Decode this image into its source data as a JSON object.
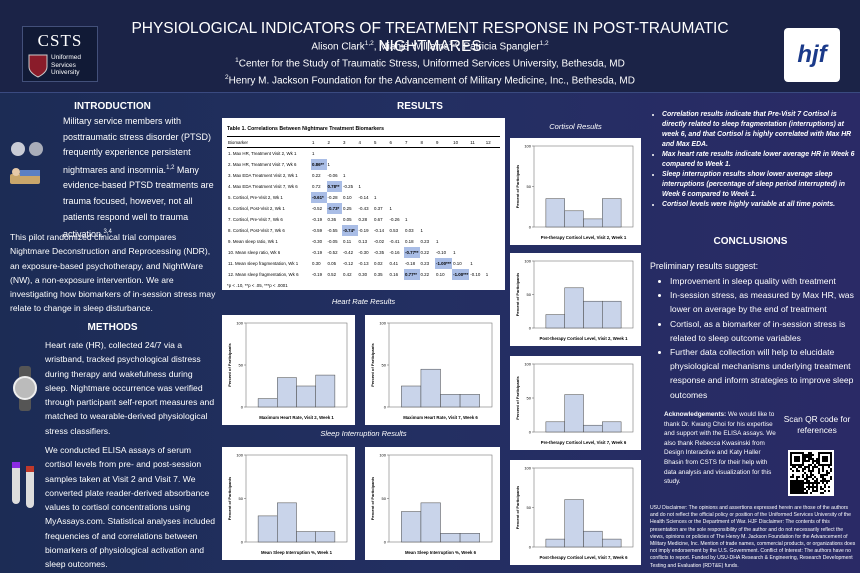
{
  "header": {
    "title": "PHYSIOLOGICAL INDICATORS OF TREATMENT RESPONSE IN POST-TRAUMATIC NIGHTMARES",
    "authors": [
      {
        "name": "Alison Clark",
        "affil": "1,2"
      },
      {
        "name": "Miahjé Williams",
        "affil": "1,2"
      },
      {
        "name": "Patricia Spangler",
        "affil": "1,2"
      }
    ],
    "affiliations": [
      {
        "mark": "1",
        "text": "Center for the Study of Traumatic Stress, Uniformed Services University, Bethesda, MD"
      },
      {
        "mark": "2",
        "text": "Henry M. Jackson Foundation for the Advancement of Military Medicine, Inc., Bethesda, MD"
      }
    ],
    "left_logo": {
      "name": "CSTS",
      "subtitle": "Uniformed Services University"
    },
    "right_logo": "hjf"
  },
  "introduction": {
    "heading": "INTRODUCTION",
    "text_1": "Military service members with posttraumatic stress disorder (PTSD) frequently experience persistent nightmares and insomnia.",
    "ref_1": "1,2",
    "text_2": " Many evidence-based PTSD treatments are trauma focused, however, not all patients respond well to trauma activation.",
    "ref_2": "3,4",
    "paragraph_2": "This pilot randomized clinical trial compares Nightmare Deconstruction and Reprocessing (NDR), an exposure-based psychotherapy, and NightWare (NW), a non-exposure intervention. We are investigating how biomarkers of in-session stress may relate to change in sleep disturbance."
  },
  "methods": {
    "heading": "METHODS",
    "paragraphs": [
      "Heart rate (HR), collected 24/7 via a wristband, tracked psychological distress during therapy and wakefulness during sleep. Nightmare occurrence was verified through participant self-report measures and matched to wearable-derived physiological stress classifiers.",
      "We conducted ELISA assays of serum cortisol levels from pre- and post-session samples taken at Visit 2 and Visit 7. We converted plate reader-derived absorbance values to cortisol concentrations using MyAssays.com. Statistical analyses included frequencies of and correlations between biomarkers of physiological activation and sleep outcomes."
    ]
  },
  "results": {
    "heading": "RESULTS",
    "table": {
      "title": "Table 1. Correlations Between Nightmare Treatment Biomarkers",
      "header": [
        "Biomarker",
        "1",
        "2",
        "3",
        "4",
        "5",
        "6",
        "7",
        "8",
        "9",
        "10",
        "11",
        "12"
      ],
      "rows": [
        {
          "label": "1. Max HR, Treatment Visit 2, Wk 1",
          "values": [
            "1"
          ]
        },
        {
          "label": "2. Max HR, Treatment Visit 7, Wk 6",
          "values": [
            "0.86**",
            "1"
          ]
        },
        {
          "label": "3. Max EDA Treatment Visit 2, Wk 1",
          "values": [
            "0.22",
            "-0.06",
            "1"
          ]
        },
        {
          "label": "4. Max EDA Treatment Visit 7, Wk 6",
          "values": [
            "0.72",
            "0.78**",
            "-0.25",
            "1"
          ]
        },
        {
          "label": "5. Cortisol, Pre-Visit 2, Wk 1",
          "values": [
            "-0.61*",
            "-0.28",
            "0.10",
            "-0.14",
            "1"
          ]
        },
        {
          "label": "6. Cortisol, Post-Visit 2, Wk 1",
          "values": [
            "-0.52",
            "-0.73*",
            "0.25",
            "-0.43",
            "0.37",
            "1"
          ]
        },
        {
          "label": "7. Cortisol, Pre-Visit 7, Wk 6",
          "values": [
            "-0.19",
            "0.36",
            "0.05",
            "0.28",
            "0.67",
            "-0.26",
            "1"
          ]
        },
        {
          "label": "8. Cortisol, Post-Visit 7, Wk 6",
          "values": [
            "-0.59",
            "-0.55",
            "-0.74*",
            "-0.19",
            "-0.14",
            "0.53",
            "0.03",
            "1"
          ]
        },
        {
          "label": "9. Mean sleep ratio, Wk 1",
          "values": [
            "-0.30",
            "-0.05",
            "0.11",
            "0.13",
            "-0.02",
            "-0.41",
            "0.18",
            "0.23",
            "1"
          ]
        },
        {
          "label": "10. Mean sleep ratio, Wk 6",
          "values": [
            "-0.19",
            "-0.52",
            "-0.42",
            "-0.30",
            "-0.35",
            "-0.16",
            "-0.77**",
            "0.22",
            "-0.10",
            "1"
          ]
        },
        {
          "label": "11. Mean sleep fragmentation, Wk 1",
          "values": [
            "0.30",
            "0.05",
            "-0.12",
            "-0.13",
            "0.02",
            "0.41",
            "-0.18",
            "0.23",
            "-1.00***",
            "0.10",
            "1"
          ]
        },
        {
          "label": "12. Mean sleep fragmentation, Wk 6",
          "values": [
            "-0.19",
            "0.52",
            "0.42",
            "0.30",
            "0.35",
            "0.16",
            "0.77**",
            "0.22",
            "0.10",
            "-1.00***",
            "-0.10",
            "1"
          ]
        }
      ],
      "footnote": "*p < .10, **p < .05, ***p < .0001"
    },
    "heart_rate": {
      "heading": "Heart Rate Results",
      "charts": [
        {
          "type": "histogram",
          "xlabel": "Maximum Heart Rate, Visit 2, Week 1",
          "ylabel": "Percent of Participants",
          "ylim": [
            0,
            100
          ],
          "yticks": [
            0,
            50,
            100
          ],
          "values": [
            10,
            35,
            25,
            38
          ]
        },
        {
          "type": "histogram",
          "xlabel": "Maximum Heart Rate, Visit 7, Week 6",
          "ylabel": "Percent of Participants",
          "ylim": [
            0,
            100
          ],
          "yticks": [
            0,
            50,
            100
          ],
          "values": [
            25,
            45,
            15,
            15
          ]
        }
      ]
    },
    "sleep": {
      "heading": "Sleep Interruption Results",
      "charts": [
        {
          "type": "histogram",
          "xlabel": "Mean Sleep Interruption %, Week 1",
          "ylabel": "Percent of Participants",
          "ylim": [
            0,
            100
          ],
          "yticks": [
            0,
            50,
            100
          ],
          "values": [
            30,
            45,
            12,
            12
          ]
        },
        {
          "type": "histogram",
          "xlabel": "Mean Sleep Interruption %, Week 6",
          "ylabel": "Percent of Participants",
          "ylim": [
            0,
            100
          ],
          "yticks": [
            0,
            50,
            100
          ],
          "values": [
            35,
            45,
            10,
            10
          ]
        }
      ]
    },
    "cortisol": {
      "heading": "Cortisol Results",
      "charts": [
        {
          "type": "histogram",
          "xlabel": "Pre-therapy Cortisol Level, Visit 2, Week 1",
          "ylabel": "Percent of Participants",
          "ylim": [
            0,
            100
          ],
          "yticks": [
            0,
            50,
            100
          ],
          "values": [
            35,
            20,
            10,
            35
          ]
        },
        {
          "type": "histogram",
          "xlabel": "Post-therapy Cortisol Level, Visit 2, Week 1",
          "ylabel": "Percent of Participants",
          "ylim": [
            0,
            100
          ],
          "yticks": [
            0,
            50,
            100
          ],
          "values": [
            20,
            60,
            40,
            40
          ]
        },
        {
          "type": "histogram",
          "xlabel": "Pre-therapy Cortisol Level, Visit 7, Week 6",
          "ylabel": "Percent of Participants",
          "ylim": [
            0,
            100
          ],
          "yticks": [
            0,
            50,
            100
          ],
          "values": [
            15,
            55,
            10,
            15
          ]
        },
        {
          "type": "histogram",
          "xlabel": "Post-therapy Cortisol Level, Visit 7, Week 6",
          "ylabel": "Percent of Participants",
          "ylim": [
            0,
            100
          ],
          "yticks": [
            0,
            50,
            100
          ],
          "values": [
            10,
            60,
            20,
            10
          ]
        }
      ]
    },
    "findings": [
      "Correlation results indicate that Pre-Visit 7 Cortisol is directly related to sleep fragmentation (interruptions) at week 6, and that Cortisol is highly correlated with Max HR and Max EDA.",
      "Max heart rate results indicate lower average HR in Week 6 compared to Week 1.",
      "Sleep interruption results show lower average sleep interruptions (percentage of sleep period interrupted) in Week 6 compared to Week 1.",
      "Cortisol levels were highly variable at all time points."
    ]
  },
  "conclusions": {
    "heading": "CONCLUSIONS",
    "lead": "Preliminary results suggest:",
    "bullets": [
      "Improvement in sleep quality with treatment",
      "In-session stress, as measured by Max HR, was lower on average by the end of treatment",
      "Cortisol, as a biomarker of in-session stress is related to sleep outcome variables",
      "Further data collection will help to elucidate physiological mechanisms underlying treatment response and inform strategies to improve sleep outcomes"
    ]
  },
  "acknowledgements": {
    "heading": "Acknowledgements:",
    "text": " We would like to thank Dr. Kwang Choi for his expertise and support with the ELISA assays. We also thank Rebecca Kwasinski from Design Interactive and Katy Haller Bhasin from CSTS for their help with data analysis and visualization for this study."
  },
  "qr_caption": "Scan QR code for references",
  "disclaimer": "USU Disclaimer: The opinions and assertions expressed herein are those of the authors and do not reflect the official policy or position of the Uniformed Services University of the Health Sciences or the Department of War. HJF Disclaimer: The contents of this presentation are the sole responsibility of the author and do not necessarily reflect the views, opinions or policies of The Henry M. Jackson Foundation for the Advancement of Military Medicine, Inc. Mention of trade names, commercial products, or organizations does not imply endorsement by the U.S. Government. Conflict of Interest: The authors have no conflicts to report. Funded by USU-DHA Research & Engineering, Research Development Testing and Evaluation (RDT&E) funds."
}
